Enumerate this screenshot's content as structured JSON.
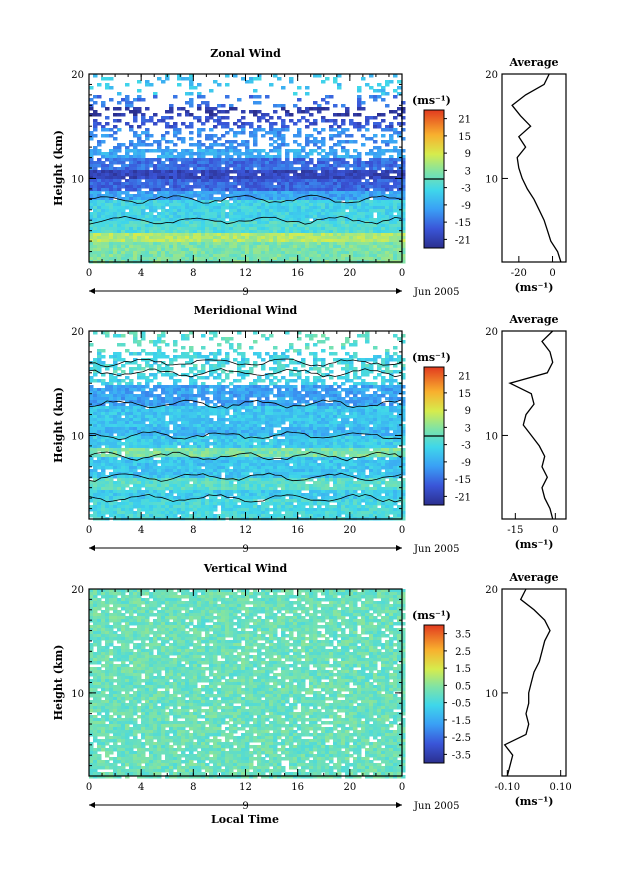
{
  "figure": {
    "xlabel": "Local Time",
    "date_label": "Jun 2005",
    "day_marker": "9"
  },
  "chart_data": [
    {
      "type": "heatmap",
      "title": "Zonal Wind",
      "xlabel": "",
      "ylabel": "Height (km)",
      "x_ticks": [
        "0",
        "4",
        "8",
        "12",
        "16",
        "20",
        "0"
      ],
      "y_ticks": [
        "10",
        "20"
      ],
      "xlim": [
        0,
        24
      ],
      "ylim": [
        2,
        20
      ],
      "colorbar": {
        "unit": "(ms⁻¹)",
        "ticks": [
          "21",
          "15",
          "9",
          "3",
          "-3",
          "-9",
          "-15",
          "-21"
        ],
        "range": [
          -24,
          24
        ]
      },
      "profile": {
        "title": "Average",
        "xlabel": "(ms⁻¹)",
        "x_ticks": [
          "-20",
          "0"
        ],
        "xlim": [
          -30,
          8
        ],
        "heights": [
          2,
          3,
          4,
          5,
          6,
          7,
          8,
          9,
          10,
          11,
          12,
          13,
          14,
          15,
          16,
          17,
          18,
          19,
          20
        ],
        "values": [
          5,
          3,
          -1,
          -3,
          -5,
          -8,
          -11,
          -15,
          -18,
          -20,
          -21,
          -16,
          -20,
          -13,
          -19,
          -24,
          -16,
          -5,
          -2
        ]
      },
      "field": {
        "bands": [
          [
            2,
            4,
            2
          ],
          [
            4,
            5,
            6
          ],
          [
            5,
            6,
            -2
          ],
          [
            6,
            8,
            -4
          ],
          [
            8,
            9,
            -10
          ],
          [
            9,
            10,
            -16
          ],
          [
            10,
            11,
            -20
          ],
          [
            11,
            12,
            -15
          ],
          [
            12,
            13,
            -9
          ],
          [
            13,
            15,
            -12
          ],
          [
            15,
            16,
            -18
          ],
          [
            16,
            17,
            -22
          ],
          [
            17,
            18,
            -14
          ],
          [
            18,
            20,
            -6
          ]
        ],
        "gaps": [
          0.0,
          0.0,
          0.0,
          0.05,
          0.05,
          0.05,
          0.05,
          0.1,
          0.3,
          0.6,
          0.65,
          0.7,
          0.75,
          0.85
        ],
        "contour_heights": [
          6,
          8
        ]
      }
    },
    {
      "type": "heatmap",
      "title": "Meridional Wind",
      "xlabel": "",
      "ylabel": "Height (km)",
      "x_ticks": [
        "0",
        "4",
        "8",
        "12",
        "16",
        "20",
        "0"
      ],
      "y_ticks": [
        "10",
        "20"
      ],
      "xlim": [
        0,
        24
      ],
      "ylim": [
        2,
        20
      ],
      "colorbar": {
        "unit": "(ms⁻¹)",
        "ticks": [
          "21",
          "15",
          "9",
          "3",
          "-3",
          "-9",
          "-15",
          "-21"
        ],
        "range": [
          -24,
          24
        ]
      },
      "profile": {
        "title": "Average",
        "xlabel": "(ms⁻¹)",
        "x_ticks": [
          "-15",
          "0"
        ],
        "xlim": [
          -20,
          4
        ],
        "heights": [
          2,
          3,
          4,
          5,
          6,
          7,
          8,
          9,
          10,
          11,
          12,
          13,
          14,
          15,
          16,
          17,
          18,
          19,
          20
        ],
        "values": [
          -1,
          -2,
          -4,
          -5,
          -3,
          -5,
          -4,
          -6,
          -9,
          -12,
          -11,
          -8,
          -9,
          -17,
          -3,
          -1,
          -2,
          -5,
          -1
        ],
        "contour_heights": [
          4,
          6,
          8,
          10,
          13,
          16,
          17
        ]
      },
      "field": {
        "bands": [
          [
            2,
            4,
            -3
          ],
          [
            4,
            5,
            -5
          ],
          [
            5,
            6,
            -1
          ],
          [
            6,
            8,
            -6
          ],
          [
            8,
            9,
            2
          ],
          [
            9,
            10,
            -5
          ],
          [
            10,
            11,
            -8
          ],
          [
            11,
            13,
            -6
          ],
          [
            13,
            15,
            -10
          ],
          [
            15,
            16,
            -4
          ],
          [
            16,
            17,
            -2
          ],
          [
            17,
            18,
            -4
          ],
          [
            18,
            20,
            -1
          ]
        ],
        "gaps": [
          0.05,
          0.05,
          0.05,
          0.05,
          0.05,
          0.05,
          0.05,
          0.05,
          0.15,
          0.5,
          0.55,
          0.5,
          0.85
        ],
        "contour_heights": [
          4,
          6,
          8,
          10,
          13,
          16,
          17
        ]
      }
    },
    {
      "type": "heatmap",
      "title": "Vertical Wind",
      "xlabel": "Local Time",
      "ylabel": "Height (km)",
      "x_ticks": [
        "0",
        "4",
        "8",
        "12",
        "16",
        "20",
        "0"
      ],
      "y_ticks": [
        "10",
        "20"
      ],
      "xlim": [
        0,
        24
      ],
      "ylim": [
        2,
        20
      ],
      "colorbar": {
        "unit": "(ms⁻¹)",
        "ticks": [
          "3.5",
          "2.5",
          "1.5",
          "0.5",
          "-0.5",
          "-1.5",
          "-2.5",
          "-3.5"
        ],
        "range": [
          -4,
          4
        ]
      },
      "profile": {
        "title": "Average",
        "xlabel": "(ms⁻¹)",
        "x_ticks": [
          "-0.10",
          "0.10"
        ],
        "xlim": [
          -0.12,
          0.12
        ],
        "heights": [
          2,
          3,
          4,
          5,
          6,
          7,
          8,
          9,
          10,
          11,
          12,
          13,
          14,
          15,
          16,
          17,
          18,
          19,
          20
        ],
        "values": [
          -0.1,
          -0.09,
          -0.08,
          -0.11,
          -0.03,
          -0.02,
          -0.03,
          -0.02,
          -0.02,
          -0.01,
          0.0,
          0.02,
          0.03,
          0.04,
          0.06,
          0.04,
          0.0,
          -0.05,
          -0.03
        ]
      },
      "field": {
        "bands": [
          [
            2,
            20,
            0.1
          ]
        ],
        "gaps": [
          0.12
        ],
        "contour_heights": []
      }
    }
  ]
}
